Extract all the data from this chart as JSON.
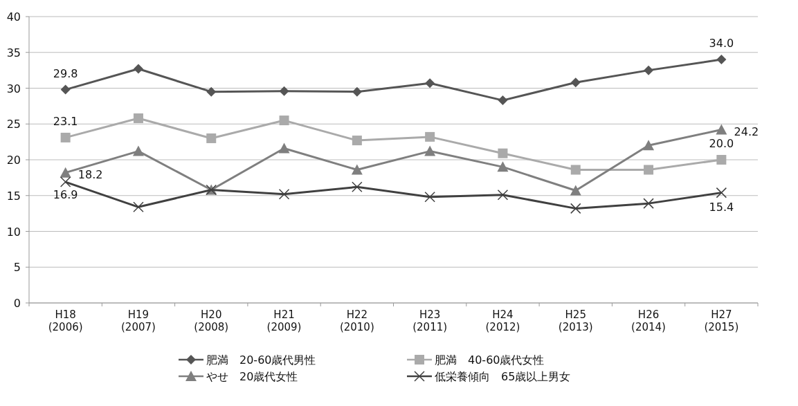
{
  "chart_data": {
    "type": "line",
    "categories": [
      "H18\n(2006)",
      "H19\n(2007)",
      "H20\n(2008)",
      "H21\n(2009)",
      "H22\n(2010)",
      "H23\n(2011)",
      "H24\n(2012)",
      "H25\n(2013)",
      "H26\n(2014)",
      "H27\n(2015)"
    ],
    "series": [
      {
        "name": "肥満　20-60歳代男性",
        "color": "#555555",
        "marker": "diamond",
        "values": [
          29.8,
          32.7,
          29.5,
          29.6,
          29.5,
          30.7,
          28.3,
          30.8,
          32.5,
          34.0
        ],
        "value_labels": [
          "29.8",
          null,
          null,
          null,
          null,
          null,
          null,
          null,
          null,
          "34.0"
        ]
      },
      {
        "name": "肥満　40-60歳代女性",
        "color": "#aaaaaa",
        "marker": "square",
        "values": [
          23.1,
          25.8,
          23.0,
          25.5,
          22.7,
          23.2,
          20.9,
          18.6,
          18.6,
          20.0
        ],
        "value_labels": [
          "23.1",
          null,
          null,
          null,
          null,
          null,
          null,
          null,
          null,
          "20.0"
        ]
      },
      {
        "name": "やせ　20歳代女性",
        "color": "#7f7f7f",
        "marker": "triangle",
        "values": [
          18.2,
          21.2,
          15.8,
          21.6,
          18.6,
          21.2,
          19.0,
          15.7,
          22.0,
          24.2
        ],
        "value_labels": [
          "18.2",
          null,
          null,
          null,
          null,
          null,
          null,
          null,
          null,
          "24.2"
        ]
      },
      {
        "name": "低栄養傾向　65歳以上男女",
        "color": "#404040",
        "marker": "cross",
        "values": [
          16.9,
          13.4,
          15.8,
          15.2,
          16.2,
          14.8,
          15.1,
          13.2,
          13.9,
          15.4
        ],
        "value_labels": [
          "16.9",
          null,
          null,
          null,
          null,
          null,
          null,
          null,
          null,
          "15.4"
        ]
      }
    ],
    "ylim": [
      0,
      40
    ],
    "yticks": [
      0,
      5,
      10,
      15,
      20,
      25,
      30,
      35,
      40
    ],
    "grid": "y",
    "legend": "bottom"
  }
}
